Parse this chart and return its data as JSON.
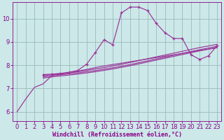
{
  "bg_color": "#cce8e8",
  "line_color": "#993399",
  "grid_color": "#99bbbb",
  "xlabel": "Windchill (Refroidissement éolien,°C)",
  "xlabel_color": "#880088",
  "tick_color": "#880088",
  "xlim": [
    -0.5,
    23.5
  ],
  "ylim": [
    5.6,
    10.7
  ],
  "yticks": [
    6,
    7,
    8,
    9,
    10
  ],
  "xticks": [
    0,
    1,
    2,
    3,
    4,
    5,
    6,
    7,
    8,
    9,
    10,
    11,
    12,
    13,
    14,
    15,
    16,
    17,
    18,
    19,
    20,
    21,
    22,
    23
  ],
  "smooth_x": [
    0,
    1,
    2,
    3,
    4,
    5,
    6,
    7,
    8,
    9,
    10,
    11,
    12,
    13,
    14,
    15,
    16,
    17,
    18,
    19,
    20,
    21,
    22,
    23
  ],
  "smooth_y": [
    6.0,
    6.55,
    7.05,
    7.2,
    7.55,
    7.62,
    7.68,
    7.75,
    7.82,
    7.9,
    7.97,
    8.03,
    8.09,
    8.15,
    8.21,
    8.27,
    8.33,
    8.39,
    8.45,
    8.51,
    8.57,
    8.63,
    8.69,
    8.75
  ],
  "line1_x": [
    3,
    4,
    5,
    6,
    7,
    8,
    9,
    10,
    11,
    12,
    13,
    14,
    15,
    16,
    17,
    18,
    19,
    20,
    21,
    22,
    23
  ],
  "line1_y": [
    7.55,
    7.6,
    7.64,
    7.68,
    7.72,
    7.78,
    7.84,
    7.9,
    7.97,
    8.04,
    8.12,
    8.2,
    8.28,
    8.36,
    8.44,
    8.52,
    8.6,
    8.68,
    8.76,
    8.83,
    8.9
  ],
  "line2_x": [
    3,
    4,
    5,
    6,
    7,
    8,
    9,
    10,
    11,
    12,
    13,
    14,
    15,
    16,
    17,
    18,
    19,
    20,
    21,
    22,
    23
  ],
  "line2_y": [
    7.5,
    7.55,
    7.59,
    7.63,
    7.67,
    7.72,
    7.77,
    7.83,
    7.89,
    7.96,
    8.03,
    8.11,
    8.19,
    8.27,
    8.35,
    8.43,
    8.51,
    8.59,
    8.67,
    8.74,
    8.82
  ],
  "line3_x": [
    3,
    4,
    5,
    6,
    7,
    8,
    9,
    10,
    11,
    12,
    13,
    14,
    15,
    16,
    17,
    18,
    19,
    20,
    21,
    22,
    23
  ],
  "line3_y": [
    7.45,
    7.5,
    7.54,
    7.58,
    7.62,
    7.67,
    7.72,
    7.78,
    7.84,
    7.91,
    7.98,
    8.06,
    8.14,
    8.22,
    8.3,
    8.38,
    8.46,
    8.54,
    8.62,
    8.69,
    8.77
  ],
  "peaked_x": [
    3,
    4,
    5,
    6,
    7,
    8,
    9,
    10,
    11,
    12,
    13,
    14,
    15,
    16,
    17,
    18,
    19,
    20,
    21,
    22,
    23
  ],
  "peaked_y": [
    7.6,
    7.62,
    7.65,
    7.7,
    7.78,
    8.05,
    8.55,
    9.1,
    8.88,
    10.25,
    10.5,
    10.5,
    10.35,
    9.8,
    9.4,
    9.15,
    9.15,
    8.45,
    8.25,
    8.4,
    8.85
  ]
}
